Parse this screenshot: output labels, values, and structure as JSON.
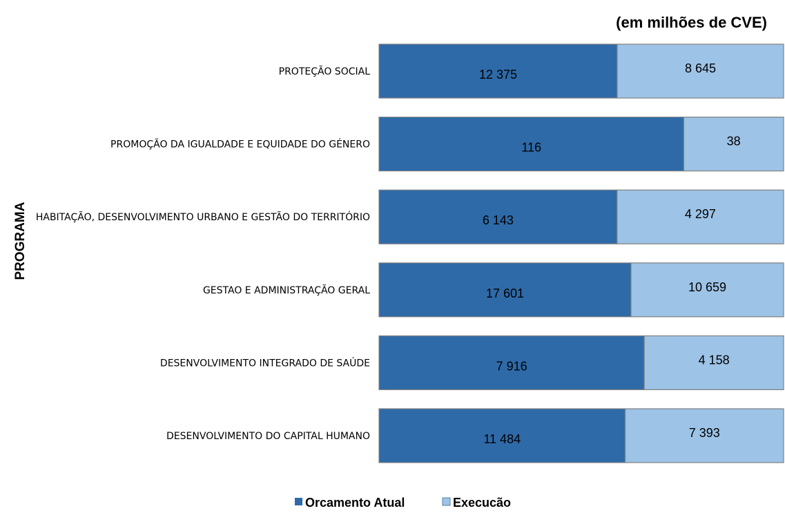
{
  "chart_data": {
    "type": "bar",
    "orientation": "horizontal",
    "stacking": "percent",
    "subtitle": "(em milhões de CVE)",
    "ylabel": "PROGRAMA",
    "xlabel": "",
    "categories": [
      "PROTEÇÃO SOCIAL",
      "PROMOÇÃO DA IGUALDADE E EQUIDADE DO GÉNERO",
      "HABITAÇÃO, DESENVOLVIMENTO URBANO E GESTÃO DO TERRITÓRIO",
      "GESTAO E ADMINISTRAÇÃO GERAL",
      "DESENVOLVIMENTO INTEGRADO DE SAÚDE",
      "DESENVOLVIMENTO DO CAPITAL HUMANO"
    ],
    "series": [
      {
        "name": "Orcamento Atual",
        "color": "#2E6AA8",
        "values": [
          12375,
          116,
          6143,
          17601,
          7916,
          11484
        ],
        "labels": [
          "12 375",
          "116",
          "6 143",
          "17 601",
          "7 916",
          "11 484"
        ]
      },
      {
        "name": "Execucão",
        "color": "#9DC3E6",
        "values": [
          8645,
          38,
          4297,
          10659,
          4158,
          7393
        ],
        "labels": [
          "8 645",
          "38",
          "4 297",
          "10 659",
          "4 158",
          "7 393"
        ]
      }
    ],
    "grid": false,
    "legend_position": "bottom"
  }
}
